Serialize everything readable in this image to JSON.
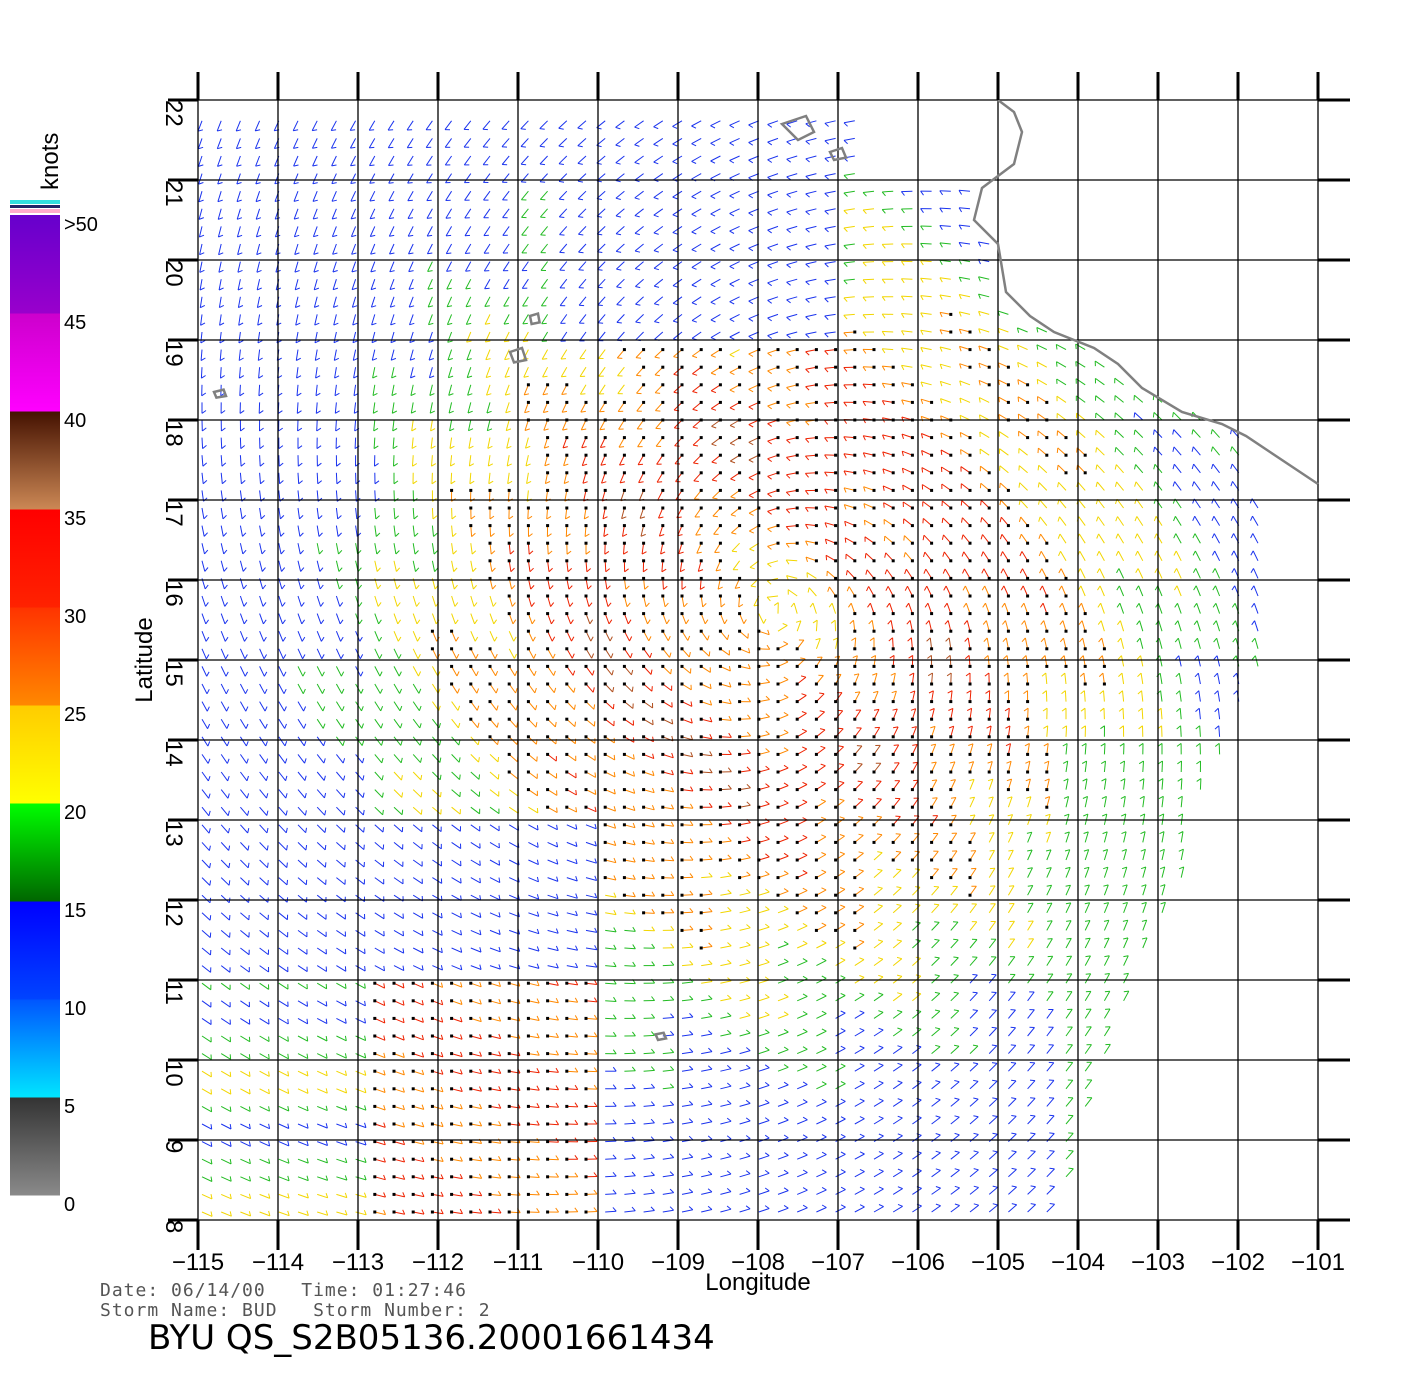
{
  "colorbar": {
    "unit_label": "knots",
    "labels": [
      ">50",
      "45",
      "40",
      "35",
      "30",
      "25",
      "20",
      "15",
      "10",
      "5",
      "0"
    ],
    "bands": [
      {
        "from": 0,
        "to": 5,
        "top": "#333333",
        "bottom": "#8a8a8a"
      },
      {
        "from": 5,
        "to": 10,
        "top": "#0055ff",
        "bottom": "#00e5ff"
      },
      {
        "from": 10,
        "to": 15,
        "top": "#0000ff",
        "bottom": "#0044ff"
      },
      {
        "from": 15,
        "to": 20,
        "top": "#00ff00",
        "bottom": "#006600"
      },
      {
        "from": 20,
        "to": 25,
        "top": "#ffcc00",
        "bottom": "#ffff00"
      },
      {
        "from": 25,
        "to": 30,
        "top": "#ff3300",
        "bottom": "#ff8800"
      },
      {
        "from": 30,
        "to": 35,
        "top": "#ff0000",
        "bottom": "#ff2200"
      },
      {
        "from": 35,
        "to": 40,
        "top": "#441100",
        "bottom": "#cc8855"
      },
      {
        "from": 40,
        "to": 45,
        "top": "#cc00cc",
        "bottom": "#ff00ff"
      },
      {
        "from": 45,
        "to": 50,
        "top": "#6600cc",
        "bottom": "#9900cc"
      }
    ]
  },
  "map": {
    "x_axis_label": "Longitude",
    "y_axis_label": "Latitude",
    "lon_ticks": [
      "-115",
      "-114",
      "-113",
      "-112",
      "-111",
      "-110",
      "-109",
      "-108",
      "-107",
      "-106",
      "-105",
      "-104",
      "-103",
      "-102",
      "-101"
    ],
    "lat_ticks": [
      "8",
      "9",
      "10",
      "11",
      "12",
      "13",
      "14",
      "15",
      "16",
      "17",
      "18",
      "19",
      "20",
      "21",
      "22"
    ],
    "lon_range": [
      -115,
      -101
    ],
    "lat_range": [
      8,
      22
    ],
    "coastline_color": "#808080",
    "coastline": [
      [
        -105,
        22
      ],
      [
        -104.8,
        21.85
      ],
      [
        -104.7,
        21.6
      ],
      [
        -104.8,
        21.2
      ],
      [
        -105.2,
        20.9
      ],
      [
        -105.3,
        20.5
      ],
      [
        -105.0,
        20.2
      ],
      [
        -104.9,
        19.6
      ],
      [
        -104.6,
        19.3
      ],
      [
        -104.3,
        19.1
      ],
      [
        -103.8,
        18.9
      ],
      [
        -103.5,
        18.7
      ],
      [
        -103.2,
        18.4
      ],
      [
        -102.7,
        18.1
      ],
      [
        -102.2,
        17.95
      ],
      [
        -101.9,
        17.8
      ],
      [
        -101.6,
        17.6
      ],
      [
        -101.3,
        17.4
      ],
      [
        -101.0,
        17.2
      ]
    ],
    "islands": [
      [
        [
          -107.7,
          21.7
        ],
        [
          -107.4,
          21.8
        ],
        [
          -107.3,
          21.6
        ],
        [
          -107.5,
          21.5
        ],
        [
          -107.7,
          21.7
        ]
      ],
      [
        [
          -107.1,
          21.35
        ],
        [
          -106.95,
          21.4
        ],
        [
          -106.9,
          21.28
        ],
        [
          -107.05,
          21.25
        ],
        [
          -107.1,
          21.35
        ]
      ],
      [
        [
          -111.1,
          18.85
        ],
        [
          -110.95,
          18.9
        ],
        [
          -110.9,
          18.75
        ],
        [
          -111.05,
          18.72
        ],
        [
          -111.1,
          18.85
        ]
      ],
      [
        [
          -110.85,
          19.3
        ],
        [
          -110.75,
          19.33
        ],
        [
          -110.73,
          19.22
        ],
        [
          -110.83,
          19.2
        ],
        [
          -110.85,
          19.3
        ]
      ],
      [
        [
          -114.8,
          18.35
        ],
        [
          -114.68,
          18.38
        ],
        [
          -114.65,
          18.3
        ],
        [
          -114.77,
          18.28
        ],
        [
          -114.8,
          18.35
        ]
      ],
      [
        [
          -109.28,
          10.32
        ],
        [
          -109.18,
          10.34
        ],
        [
          -109.15,
          10.27
        ],
        [
          -109.25,
          10.25
        ],
        [
          -109.28,
          10.32
        ]
      ]
    ],
    "swath_edge": [
      [
        -101.8,
        17.8
      ],
      [
        -101.6,
        15.0
      ],
      [
        -101.9,
        14.5
      ],
      [
        -102.5,
        13.2
      ],
      [
        -102.6,
        12.5
      ],
      [
        -103.3,
        11.0
      ],
      [
        -104.0,
        9.0
      ],
      [
        -104.3,
        8.0
      ]
    ]
  },
  "info": {
    "date_line": "Date: 06/14/00   Time: 01:27:46",
    "storm_line": "Storm Name: BUD   Storm Number: 2",
    "product_title": "BYU QS_S2B05136.20001661434"
  }
}
